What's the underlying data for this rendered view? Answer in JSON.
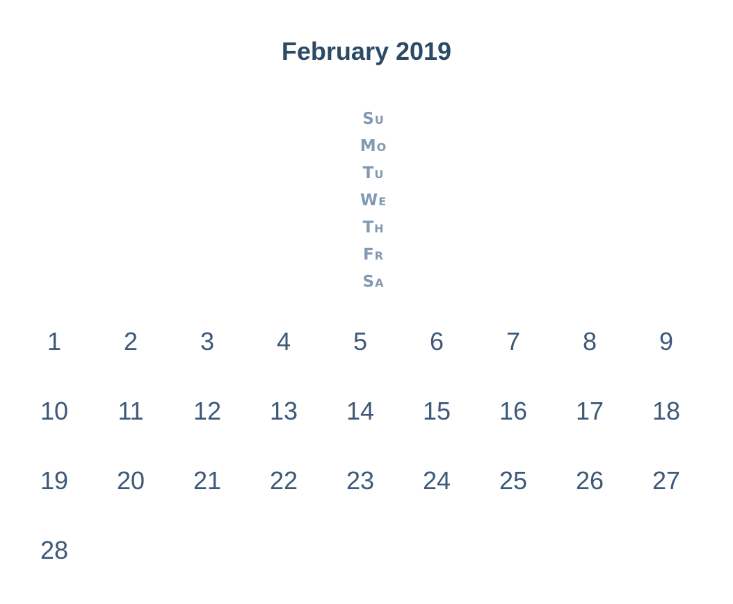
{
  "calendar": {
    "title": "February 2019",
    "weekdays": [
      "Su",
      "Mo",
      "Tu",
      "We",
      "Th",
      "Fr",
      "Sa"
    ],
    "days": [
      "1",
      "2",
      "3",
      "4",
      "5",
      "6",
      "7",
      "8",
      "9",
      "10",
      "11",
      "12",
      "13",
      "14",
      "15",
      "16",
      "17",
      "18",
      "19",
      "20",
      "21",
      "22",
      "23",
      "24",
      "25",
      "26",
      "27",
      "28"
    ]
  },
  "colors": {
    "title": "#2c4a66",
    "weekday": "#8199b2",
    "day": "#3d5878",
    "background": "#ffffff"
  }
}
